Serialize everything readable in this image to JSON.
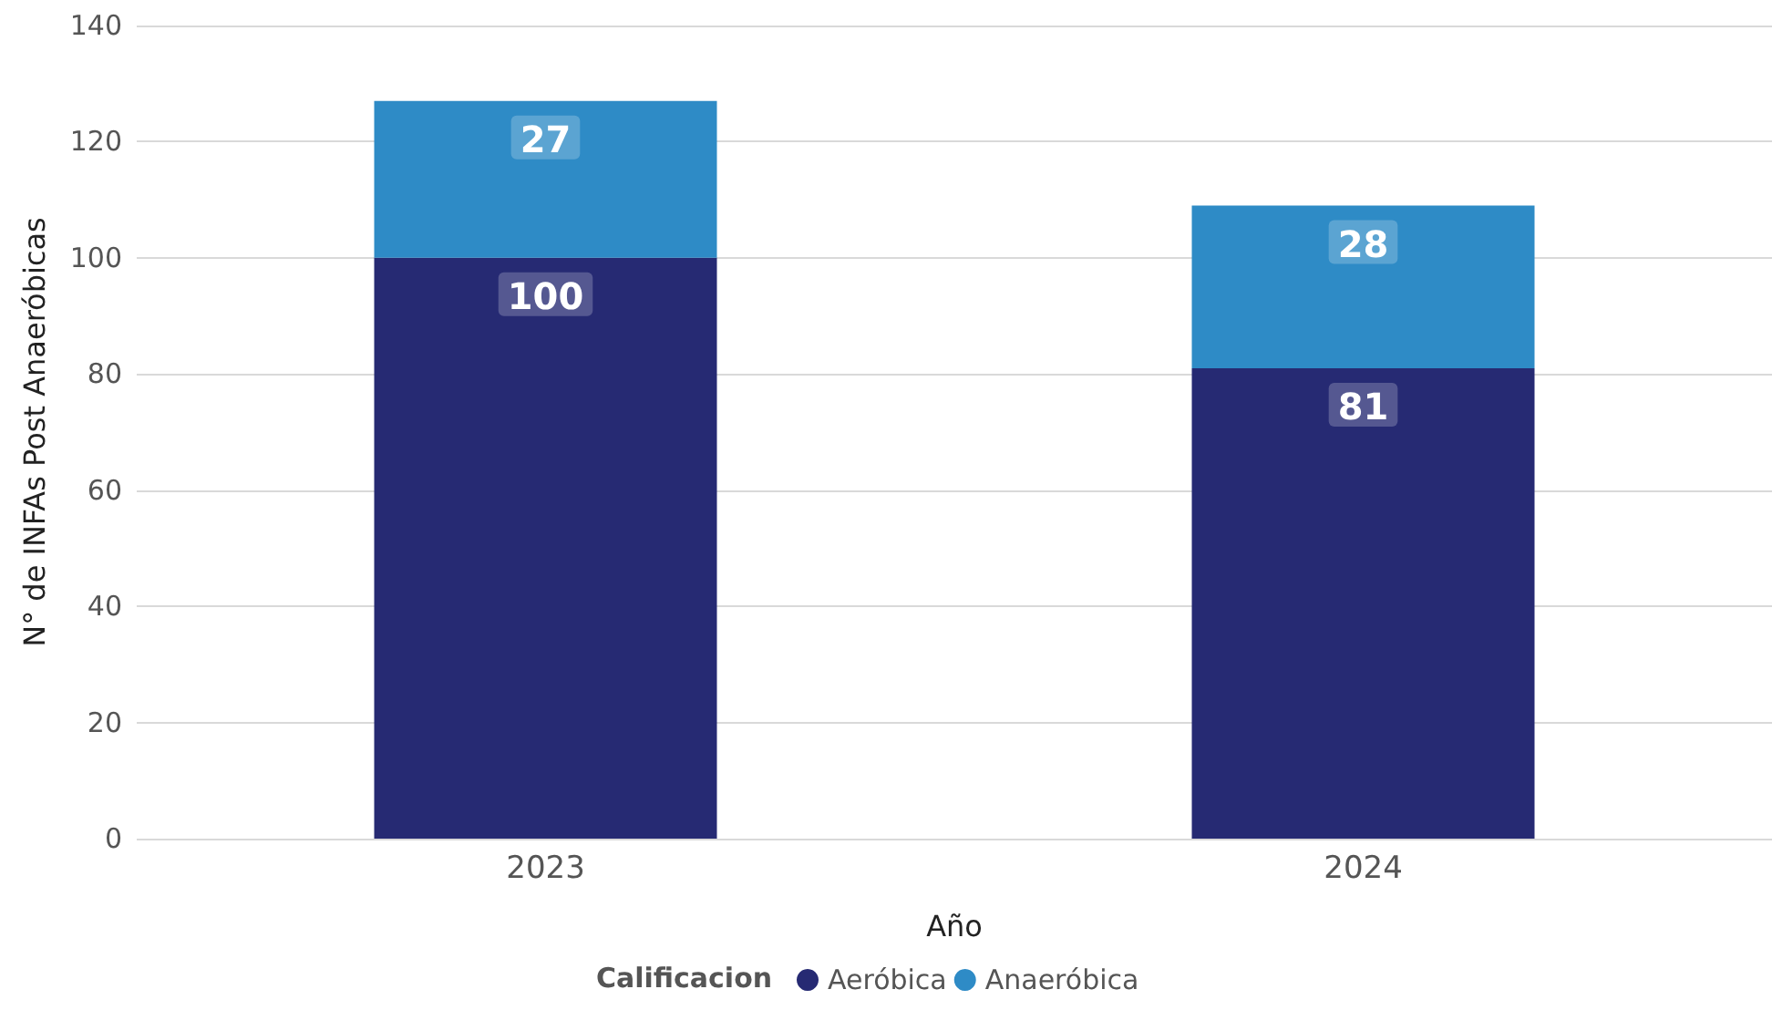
{
  "chart_data": {
    "type": "bar",
    "stacked": true,
    "categories": [
      "2023",
      "2024"
    ],
    "series": [
      {
        "name": "Aeróbica",
        "color": "#262a73",
        "values": [
          100,
          81
        ]
      },
      {
        "name": "Anaeróbica",
        "color": "#2e8bc6",
        "values": [
          27,
          28
        ]
      }
    ],
    "xlabel": "Año",
    "ylabel": "N° de INFAs Post Anaeróbicas",
    "legend_title": "Calificacion",
    "legend": "bottom",
    "ylim": [
      0,
      140
    ],
    "yticks": [
      0,
      20,
      40,
      60,
      80,
      100,
      120,
      140
    ],
    "grid": "y",
    "data_labels": true
  }
}
